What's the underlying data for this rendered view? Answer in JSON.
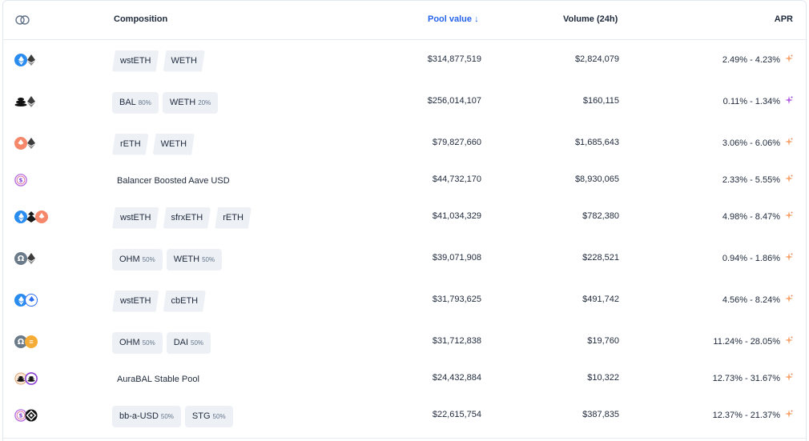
{
  "header": {
    "composition": "Composition",
    "pool_value": "Pool value",
    "sort_arrow": "↓",
    "volume": "Volume (24h)",
    "apr": "APR"
  },
  "colors": {
    "accent": "#2563eb",
    "pill_bg": "#edf1f6",
    "text": "#1e293b",
    "muted": "#64748b"
  },
  "rows": [
    {
      "tokens": [
        "wsteth-icon",
        "eth-icon"
      ],
      "kind": "slant",
      "composition": [
        {
          "symbol": "wstETH"
        },
        {
          "symbol": "WETH"
        }
      ],
      "pool_value": "$314,877,519",
      "volume": "$2,824,079",
      "apr": "2.49% - 4.23%",
      "spark": "orange-sparkle-icon"
    },
    {
      "tokens": [
        "bal-icon",
        "eth-icon"
      ],
      "kind": "weighted",
      "composition": [
        {
          "symbol": "BAL",
          "weight": "80%"
        },
        {
          "symbol": "WETH",
          "weight": "20%"
        }
      ],
      "pool_value": "$256,014,107",
      "volume": "$160,115",
      "apr": "0.11% - 1.34%",
      "spark": "purple-sparkle-icon"
    },
    {
      "tokens": [
        "reth-icon",
        "eth-icon"
      ],
      "kind": "slant",
      "composition": [
        {
          "symbol": "rETH"
        },
        {
          "symbol": "WETH"
        }
      ],
      "pool_value": "$79,827,660",
      "volume": "$1,685,643",
      "apr": "3.06% - 6.06%",
      "spark": "orange-sparkle-icon"
    },
    {
      "tokens": [
        "bb-a-usd-icon"
      ],
      "kind": "plain",
      "name": "Balancer Boosted Aave USD",
      "pool_value": "$44,732,170",
      "volume": "$8,930,065",
      "apr": "2.33% - 5.55%",
      "spark": "orange-sparkle-icon"
    },
    {
      "tokens": [
        "wsteth-icon",
        "sfrxeth-icon",
        "reth-icon"
      ],
      "kind": "slant",
      "composition": [
        {
          "symbol": "wstETH"
        },
        {
          "symbol": "sfrxETH"
        },
        {
          "symbol": "rETH"
        }
      ],
      "pool_value": "$41,034,329",
      "volume": "$782,380",
      "apr": "4.98% - 8.47%",
      "spark": "orange-sparkle-icon"
    },
    {
      "tokens": [
        "ohm-icon",
        "eth-icon"
      ],
      "kind": "weighted",
      "composition": [
        {
          "symbol": "OHM",
          "weight": "50%"
        },
        {
          "symbol": "WETH",
          "weight": "50%"
        }
      ],
      "pool_value": "$39,071,908",
      "volume": "$228,521",
      "apr": "0.94% - 1.86%",
      "spark": "orange-sparkle-icon"
    },
    {
      "tokens": [
        "wsteth-icon",
        "cbeth-icon"
      ],
      "kind": "slant",
      "composition": [
        {
          "symbol": "wstETH"
        },
        {
          "symbol": "cbETH"
        }
      ],
      "pool_value": "$31,793,625",
      "volume": "$491,742",
      "apr": "4.56% - 8.24%",
      "spark": "orange-sparkle-icon"
    },
    {
      "tokens": [
        "ohm-icon",
        "dai-icon"
      ],
      "kind": "weighted",
      "composition": [
        {
          "symbol": "OHM",
          "weight": "50%"
        },
        {
          "symbol": "DAI",
          "weight": "50%"
        }
      ],
      "pool_value": "$31,712,838",
      "volume": "$19,760",
      "apr": "11.24% - 28.05%",
      "spark": "orange-sparkle-icon"
    },
    {
      "tokens": [
        "aurabal-icon",
        "bal-eth-bpt-icon"
      ],
      "kind": "plain",
      "name": "AuraBAL Stable Pool",
      "pool_value": "$24,432,884",
      "volume": "$10,322",
      "apr": "12.73% - 31.67%",
      "spark": "orange-sparkle-icon"
    },
    {
      "tokens": [
        "bb-a-usd-icon",
        "stg-icon"
      ],
      "kind": "weighted",
      "composition": [
        {
          "symbol": "bb-a-USD",
          "weight": "50%"
        },
        {
          "symbol": "STG",
          "weight": "50%"
        }
      ],
      "pool_value": "$22,615,754",
      "volume": "$387,835",
      "apr": "12.37% - 21.37%",
      "spark": "orange-sparkle-icon"
    }
  ]
}
